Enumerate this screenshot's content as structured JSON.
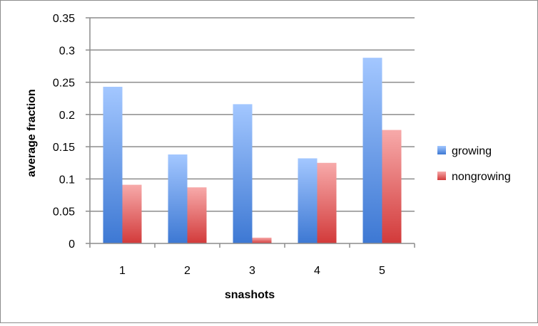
{
  "chart_data": {
    "type": "bar",
    "title": "",
    "xlabel": "snashots",
    "ylabel": "average fraction",
    "categories": [
      "1",
      "2",
      "3",
      "4",
      "5"
    ],
    "series": [
      {
        "name": "growing",
        "values": [
          0.243,
          0.138,
          0.216,
          0.132,
          0.288
        ]
      },
      {
        "name": "nongrowing",
        "values": [
          0.091,
          0.087,
          0.009,
          0.125,
          0.176
        ]
      }
    ],
    "ylim": [
      0,
      0.35
    ],
    "y_ticks": [
      "0",
      "0.05",
      "0.1",
      "0.15",
      "0.2",
      "0.25",
      "0.3",
      "0.35"
    ],
    "grid": true,
    "legend_position": "right",
    "colors": {
      "growing_top": "#a3c7ff",
      "growing_bottom": "#3d78d3",
      "nongrowing_top": "#f7aaaa",
      "nongrowing_bottom": "#d23a3a",
      "grid": "#8c8c8c"
    }
  }
}
